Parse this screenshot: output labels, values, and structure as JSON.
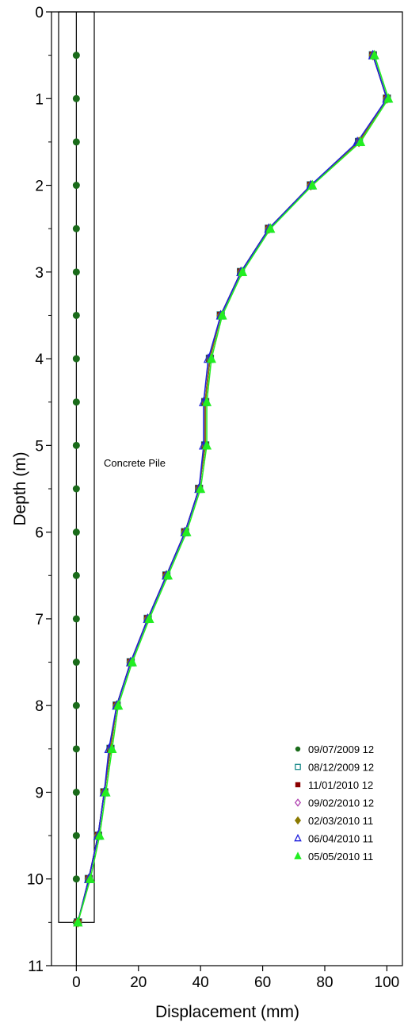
{
  "chart_data": {
    "type": "line",
    "title": "",
    "xlabel": "Displacement (mm)",
    "ylabel": "Depth (m)",
    "xlim": [
      -8,
      105
    ],
    "ylim": [
      0,
      11
    ],
    "x_ticks": [
      0,
      20,
      40,
      60,
      80,
      100
    ],
    "y_ticks": [
      0,
      1,
      2,
      3,
      4,
      5,
      6,
      7,
      8,
      9,
      10,
      11
    ],
    "y_inverted": true,
    "grid": false,
    "legend_position": "bottom-right",
    "annotations": [
      {
        "text": "Concrete Pile"
      }
    ],
    "depth": [
      0.5,
      1.0,
      1.5,
      2.0,
      2.5,
      3.0,
      3.5,
      4.0,
      4.5,
      5.0,
      5.5,
      6.0,
      6.5,
      7.0,
      7.5,
      8.0,
      8.5,
      9.0,
      9.5,
      10.0,
      10.5
    ],
    "series": [
      {
        "name": "09/07/2009 12",
        "color": "#1a6b1a",
        "marker": "circle",
        "displacement": [
          0,
          0,
          0,
          0,
          0,
          0,
          0,
          0,
          0,
          0,
          0,
          0,
          0,
          0,
          0,
          0,
          0,
          0,
          0,
          0,
          0
        ]
      },
      {
        "name": "08/12/2009 12",
        "color": "#1a8a8a",
        "marker": "square-open",
        "displacement": [
          95.5,
          100,
          91,
          75.5,
          62,
          53,
          46.5,
          43,
          41.5,
          41.5,
          39.5,
          35,
          29,
          23,
          17.5,
          13,
          11,
          9,
          7,
          4,
          0.5
        ]
      },
      {
        "name": "11/01/2010 12",
        "color": "#8b0000",
        "marker": "square",
        "displacement": [
          95.5,
          100,
          91,
          75.5,
          62,
          53,
          46.5,
          43,
          41.5,
          41.5,
          39.5,
          35,
          29,
          23,
          17.5,
          13,
          11,
          9,
          7,
          4,
          0.5
        ]
      },
      {
        "name": "09/02/2010 12",
        "color": "#b040b0",
        "marker": "diamond-open",
        "displacement": [
          95.5,
          100,
          91,
          75.5,
          62,
          53,
          46.5,
          43,
          41.5,
          41.5,
          39.5,
          35,
          29,
          23,
          17.5,
          13,
          11,
          9,
          7,
          4,
          0.5
        ]
      },
      {
        "name": "02/03/2010 11",
        "color": "#8b7a00",
        "marker": "diamond",
        "displacement": [
          95.5,
          100,
          91,
          75.5,
          62,
          53,
          46.5,
          43,
          41.5,
          41.5,
          39.5,
          35,
          29,
          23,
          17.5,
          13,
          11,
          9,
          7,
          4,
          0.5
        ]
      },
      {
        "name": "06/04/2010 11",
        "color": "#2020dd",
        "marker": "triangle-open",
        "displacement": [
          95.5,
          100,
          90.5,
          75.5,
          62,
          53,
          46.5,
          42.5,
          41,
          41,
          39.5,
          35,
          29,
          23,
          17.5,
          13,
          10.5,
          9,
          7,
          4,
          0.5
        ]
      },
      {
        "name": "05/05/2010 11",
        "color": "#22ee22",
        "marker": "triangle",
        "displacement": [
          96,
          100.5,
          91.5,
          76,
          62.5,
          53.5,
          47,
          43.5,
          42,
          42,
          40,
          35.5,
          29.5,
          23.5,
          18,
          13.5,
          11.5,
          9.5,
          7.5,
          4.5,
          0.5
        ]
      }
    ]
  }
}
